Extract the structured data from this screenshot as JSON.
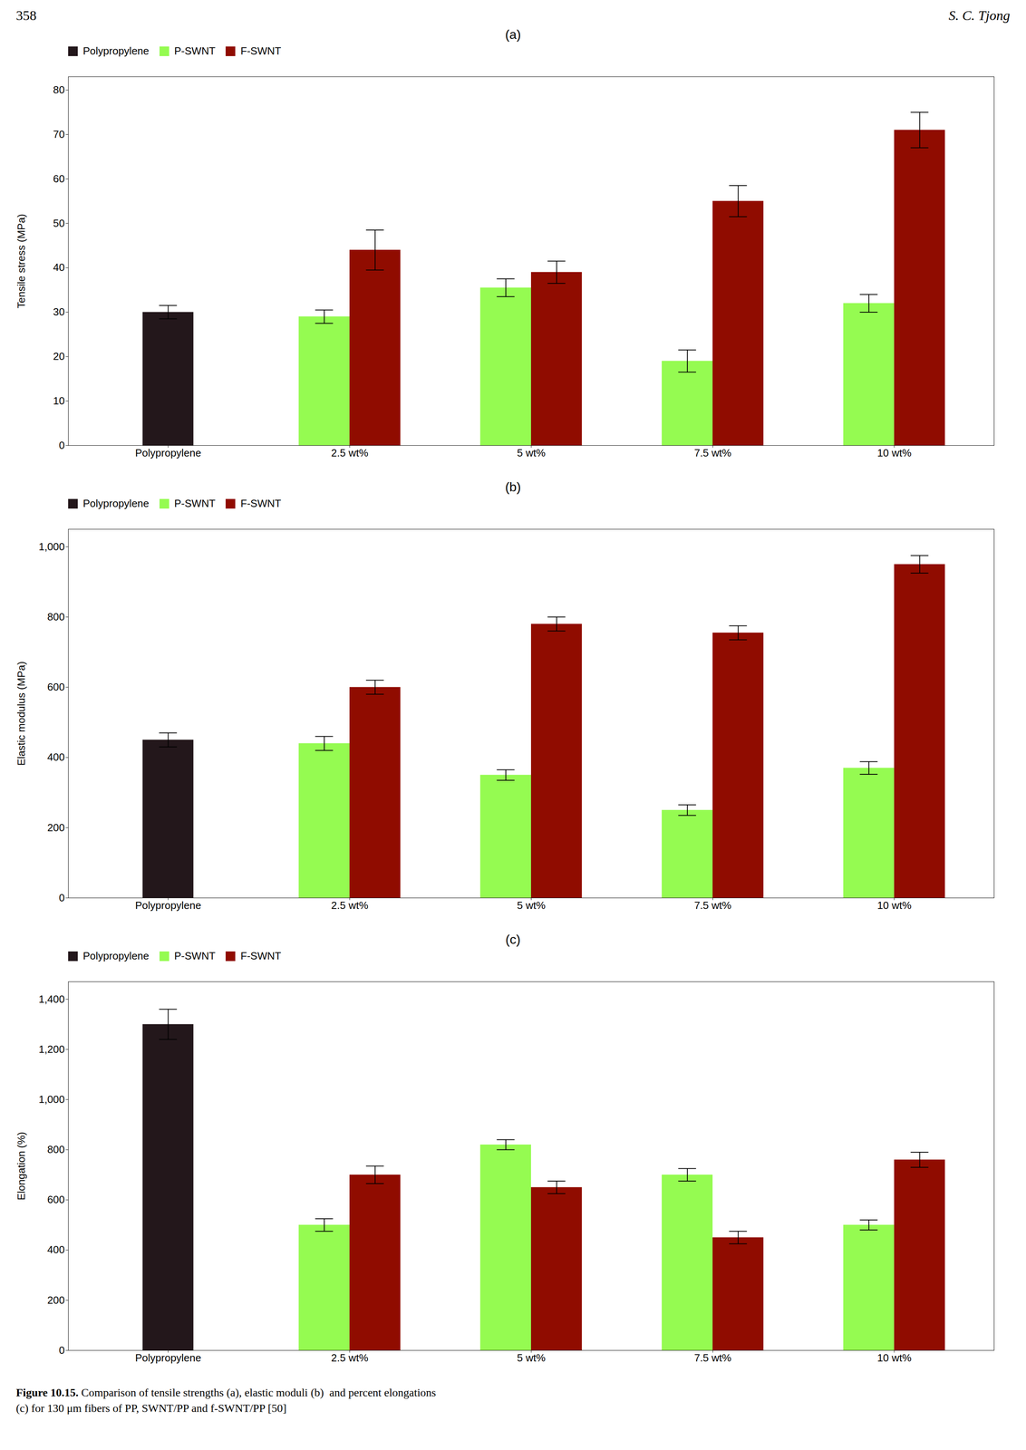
{
  "annotations": [
    "358",
    "S. C. Tjong"
  ],
  "caption": "Figure 10.15. Comparison of tensile strengths (a), elastic moduli (b)  and percent elongations\n(c) for 130 μm fibers of PP, SWNT/PP and f-SWNT/PP [50]",
  "chart_data": [
    {
      "type": "bar",
      "title": "(a)",
      "categories": [
        "Polypropylene",
        "2.5 wt%",
        "5 wt%",
        "7.5 wt%",
        "10 wt%"
      ],
      "ylabel": "Tensile stress (MPa)",
      "ylim": [
        0,
        83
      ],
      "yticks": [
        0,
        10,
        20,
        30,
        40,
        50,
        60,
        70,
        80
      ],
      "legend": "upper left",
      "series": [
        {
          "name": "Polypropylene",
          "values": [
            30.0,
            null,
            null,
            null,
            null
          ],
          "errors": [
            1.5,
            null,
            null,
            null,
            null
          ]
        },
        {
          "name": "P-SWNT",
          "values": [
            null,
            29.0,
            35.5,
            19.0,
            32.0
          ],
          "errors": [
            null,
            1.5,
            2.0,
            2.5,
            2.0
          ]
        },
        {
          "name": "F-SWNT",
          "values": [
            null,
            44.0,
            39.0,
            55.0,
            71.0
          ],
          "errors": [
            null,
            4.5,
            2.5,
            3.5,
            4.0
          ]
        }
      ]
    },
    {
      "type": "bar",
      "title": "(b)",
      "categories": [
        "Polypropylene",
        "2.5 wt%",
        "5 wt%",
        "7.5 wt%",
        "10 wt%"
      ],
      "ylabel": "Elastic modulus (MPa)",
      "ylim": [
        0,
        1050
      ],
      "yticks": [
        0,
        200,
        400,
        600,
        800,
        1000
      ],
      "legend": "upper left",
      "series": [
        {
          "name": "Polypropylene",
          "values": [
            450.0,
            null,
            null,
            null,
            null
          ],
          "errors": [
            20.0,
            null,
            null,
            null,
            null
          ]
        },
        {
          "name": "P-SWNT",
          "values": [
            null,
            440.0,
            350.0,
            250.0,
            370.0
          ],
          "errors": [
            null,
            20.0,
            15.0,
            15.0,
            18.0
          ]
        },
        {
          "name": "F-SWNT",
          "values": [
            null,
            600.0,
            780.0,
            755.0,
            950.0
          ],
          "errors": [
            null,
            20.0,
            20.0,
            20.0,
            25.0
          ]
        }
      ]
    },
    {
      "type": "bar",
      "title": "(c)",
      "categories": [
        "Polypropylene",
        "2.5 wt%",
        "5 wt%",
        "7.5 wt%",
        "10 wt%"
      ],
      "ylabel": "Elongation (%)",
      "ylim": [
        0,
        1470
      ],
      "yticks": [
        0,
        200,
        400,
        600,
        800,
        1000,
        1200,
        1400
      ],
      "legend": "upper left",
      "series": [
        {
          "name": "Polypropylene",
          "values": [
            1300.0,
            null,
            null,
            null,
            null
          ],
          "errors": [
            60.0,
            null,
            null,
            null,
            null
          ]
        },
        {
          "name": "P-SWNT",
          "values": [
            null,
            500.0,
            820.0,
            700.0,
            500.0
          ],
          "errors": [
            null,
            25.0,
            20.0,
            25.0,
            20.0
          ]
        },
        {
          "name": "F-SWNT",
          "values": [
            null,
            700.0,
            650.0,
            450.0,
            760.0
          ],
          "errors": [
            null,
            35.0,
            25.0,
            25.0,
            30.0
          ]
        }
      ]
    }
  ]
}
